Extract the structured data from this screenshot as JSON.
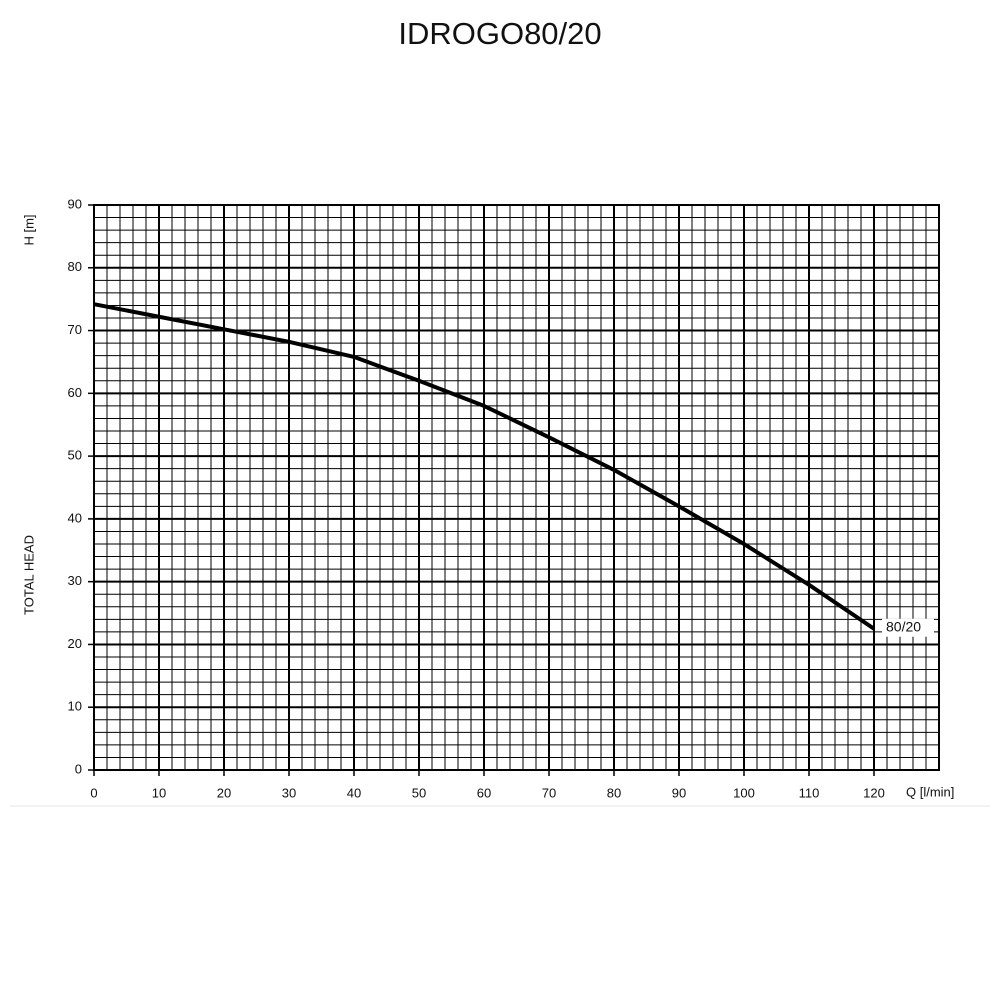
{
  "chart_data": {
    "type": "line",
    "title": "IDROGO80/20",
    "x_label": "Q [l/min]",
    "y_label_top": "H [m]",
    "y_label": "TOTAL HEAD",
    "x": [
      0,
      10,
      20,
      30,
      40,
      50,
      60,
      70,
      80,
      90,
      100,
      110,
      120
    ],
    "series": [
      {
        "name": "80/20",
        "color": "#000000",
        "values": [
          74.2,
          72.2,
          70.2,
          68.2,
          65.8,
          62,
          58,
          53,
          47.8,
          42,
          36,
          29.5,
          22.5
        ]
      }
    ],
    "xlim": [
      0,
      130
    ],
    "xticks": [
      0,
      10,
      20,
      30,
      40,
      50,
      60,
      70,
      80,
      90,
      100,
      110,
      120
    ],
    "ylim": [
      0,
      90
    ],
    "yticks": [
      0,
      10,
      20,
      30,
      40,
      50,
      60,
      70,
      80,
      90
    ],
    "grid": true
  }
}
